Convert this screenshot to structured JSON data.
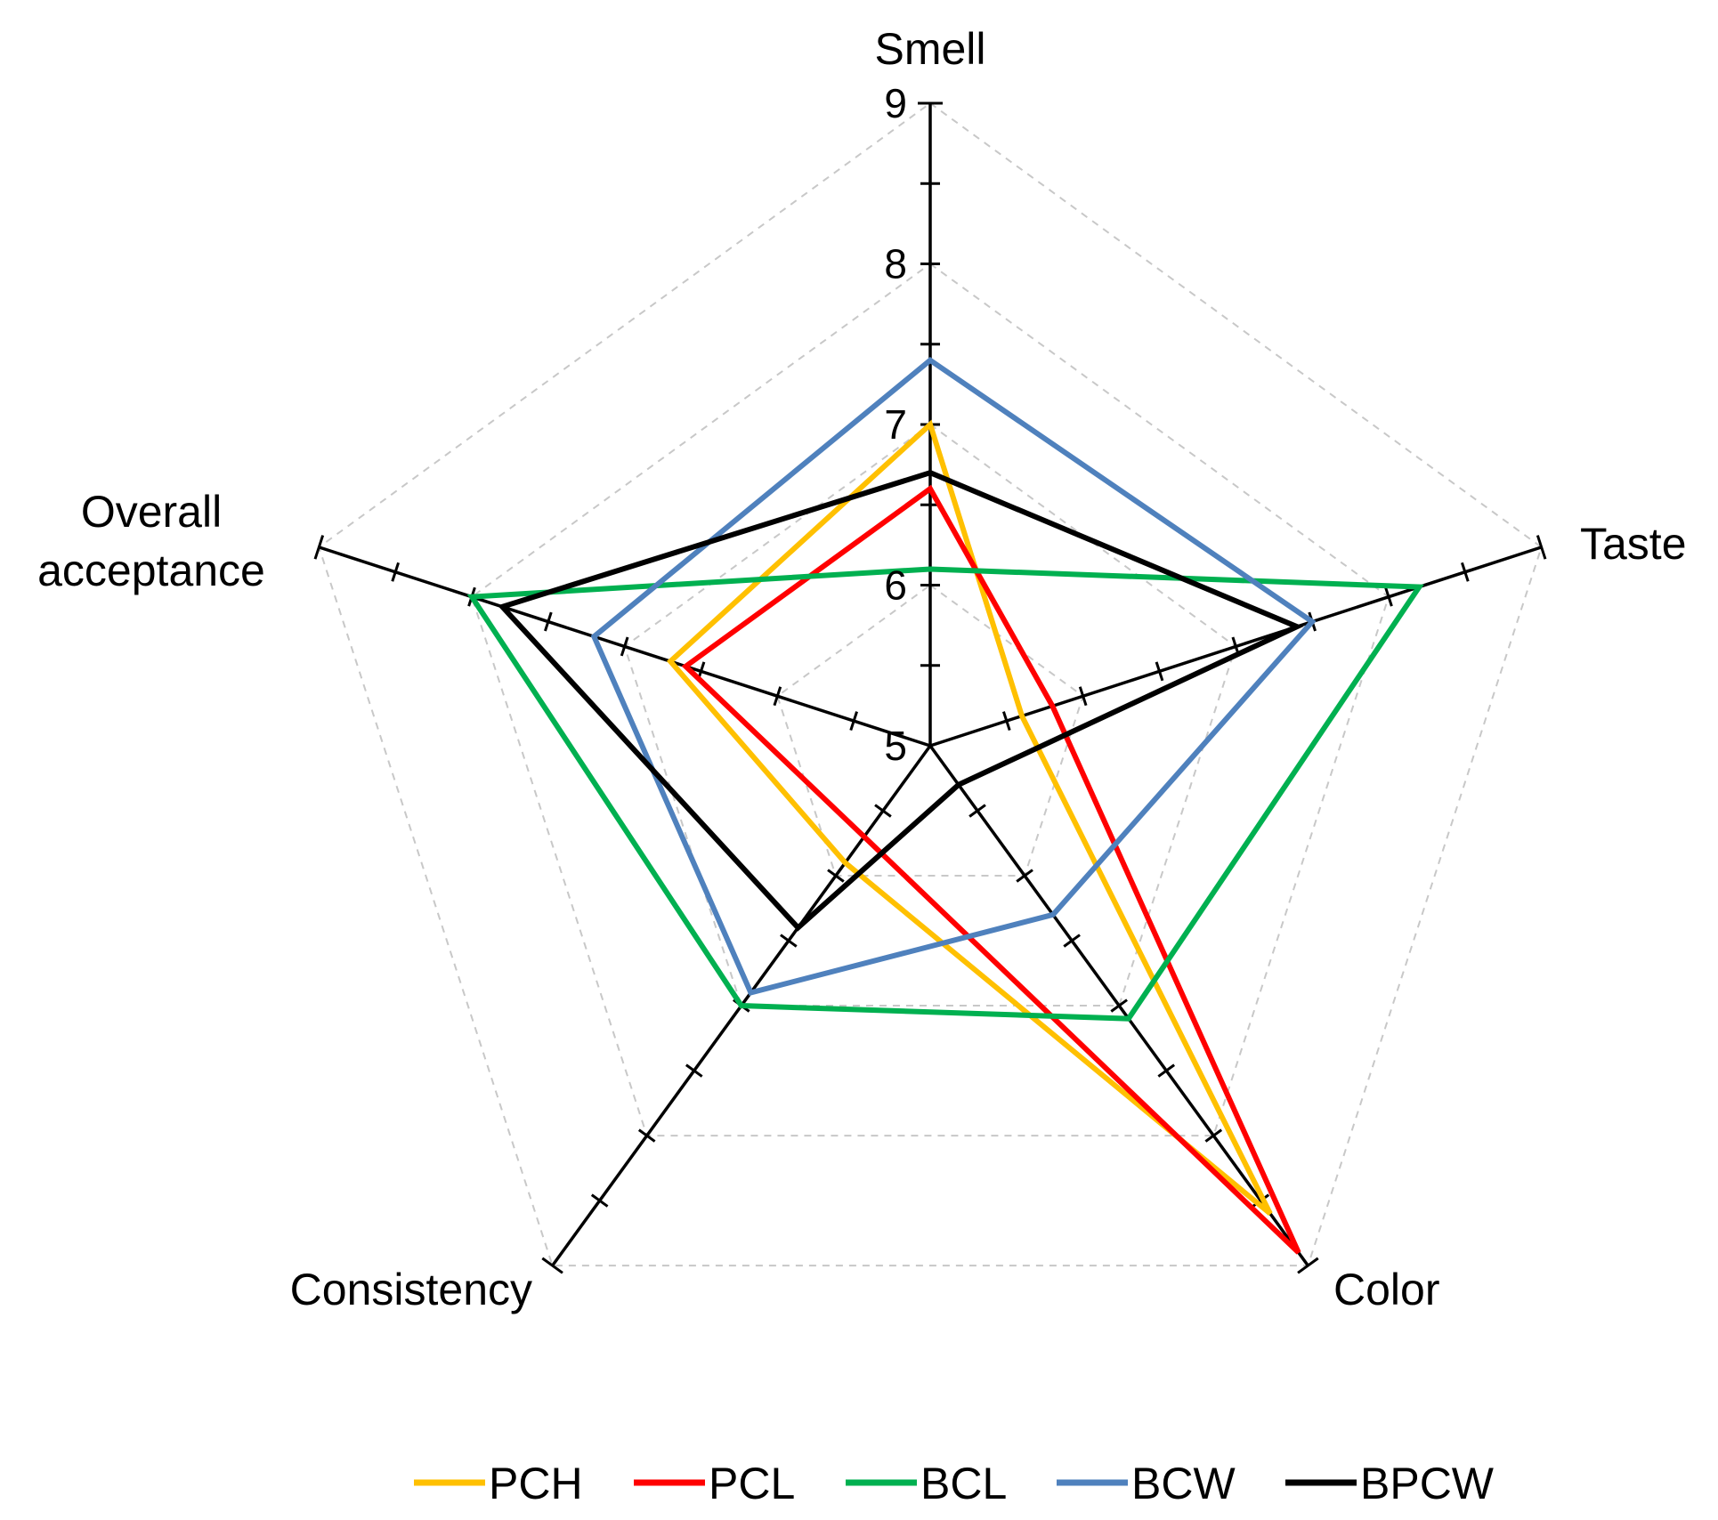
{
  "chart_data": {
    "type": "radar",
    "title": "",
    "axes": [
      "Smell",
      "Taste",
      "Color",
      "Consistency",
      "Overall acceptance"
    ],
    "axis_label_lines": [
      [
        "Smell"
      ],
      [
        "Taste"
      ],
      [
        "Color"
      ],
      [
        "Consistency"
      ],
      [
        "Overall",
        "acceptance"
      ]
    ],
    "range": [
      5,
      9
    ],
    "ticks": [
      5,
      6,
      7,
      8,
      9
    ],
    "tick_labels": [
      "5",
      "6",
      "7",
      "8",
      "9"
    ],
    "minor_step": 0.5,
    "series": [
      {
        "name": "PCH",
        "color": "#FFC000",
        "values": [
          7.0,
          5.6,
          8.6,
          5.9,
          6.7
        ]
      },
      {
        "name": "PCL",
        "color": "#FF0000",
        "values": [
          6.6,
          5.8,
          8.9,
          5.7,
          6.6
        ]
      },
      {
        "name": "BCL",
        "color": "#00B050",
        "values": [
          6.1,
          8.2,
          7.1,
          7.0,
          8.0
        ]
      },
      {
        "name": "BCW",
        "color": "#4F81BD",
        "values": [
          7.4,
          7.5,
          6.3,
          6.9,
          7.2
        ]
      },
      {
        "name": "BPCW",
        "color": "#000000",
        "values": [
          6.7,
          7.4,
          5.3,
          6.4,
          7.8
        ]
      }
    ],
    "legend": {
      "position": "bottom"
    },
    "grid": true
  }
}
